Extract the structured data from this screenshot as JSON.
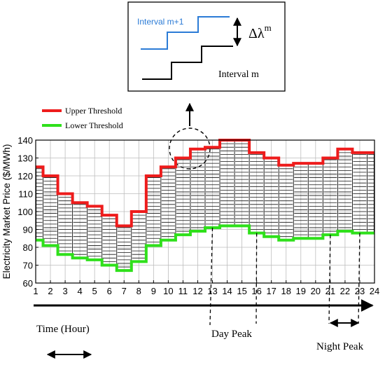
{
  "inset": {
    "label_upper": "Interval m+1",
    "label_lower": "Interval m",
    "delta_symbol": "Δλ",
    "delta_superscript": "m"
  },
  "legend": {
    "upper": "Upper Threshold",
    "lower": "Lower Threshold"
  },
  "annotations": {
    "time_label": "Time (Hour)",
    "day_peak": "Day Peak",
    "night_peak": "Night Peak"
  },
  "colors": {
    "upper": "#ee1c1c",
    "lower": "#2fe01b",
    "inset_blue": "#2b7bd6",
    "steps": "#111111"
  },
  "chart_data": {
    "type": "area",
    "title": "",
    "xlabel": "",
    "ylabel": "Electricity Market Price ($/MWh)",
    "x": [
      1,
      2,
      3,
      4,
      5,
      6,
      7,
      8,
      9,
      10,
      11,
      12,
      13,
      14,
      15,
      16,
      17,
      18,
      19,
      20,
      21,
      22,
      23,
      24
    ],
    "xlim": [
      1,
      24
    ],
    "ylim": [
      60,
      140
    ],
    "yticks": [
      60,
      70,
      80,
      90,
      100,
      110,
      120,
      130,
      140
    ],
    "grid": true,
    "series": [
      {
        "name": "Upper Threshold",
        "values": [
          125,
          120,
          110,
          105,
          103,
          98,
          92,
          100,
          120,
          125,
          130,
          135,
          136,
          140,
          140,
          133,
          130,
          126,
          127,
          127,
          130,
          135,
          133,
          133
        ]
      },
      {
        "name": "Lower Threshold",
        "values": [
          84,
          81,
          76,
          74,
          73,
          70,
          67,
          72,
          81,
          84,
          87,
          89,
          91,
          92,
          92,
          88,
          86,
          84,
          85,
          85,
          87,
          89,
          88,
          88
        ]
      }
    ],
    "step_spacing": 2,
    "highlighted_ranges": [
      {
        "name": "Day Peak",
        "x": [
          13,
          16
        ]
      },
      {
        "name": "Night Peak",
        "x": [
          21,
          23
        ]
      }
    ]
  }
}
